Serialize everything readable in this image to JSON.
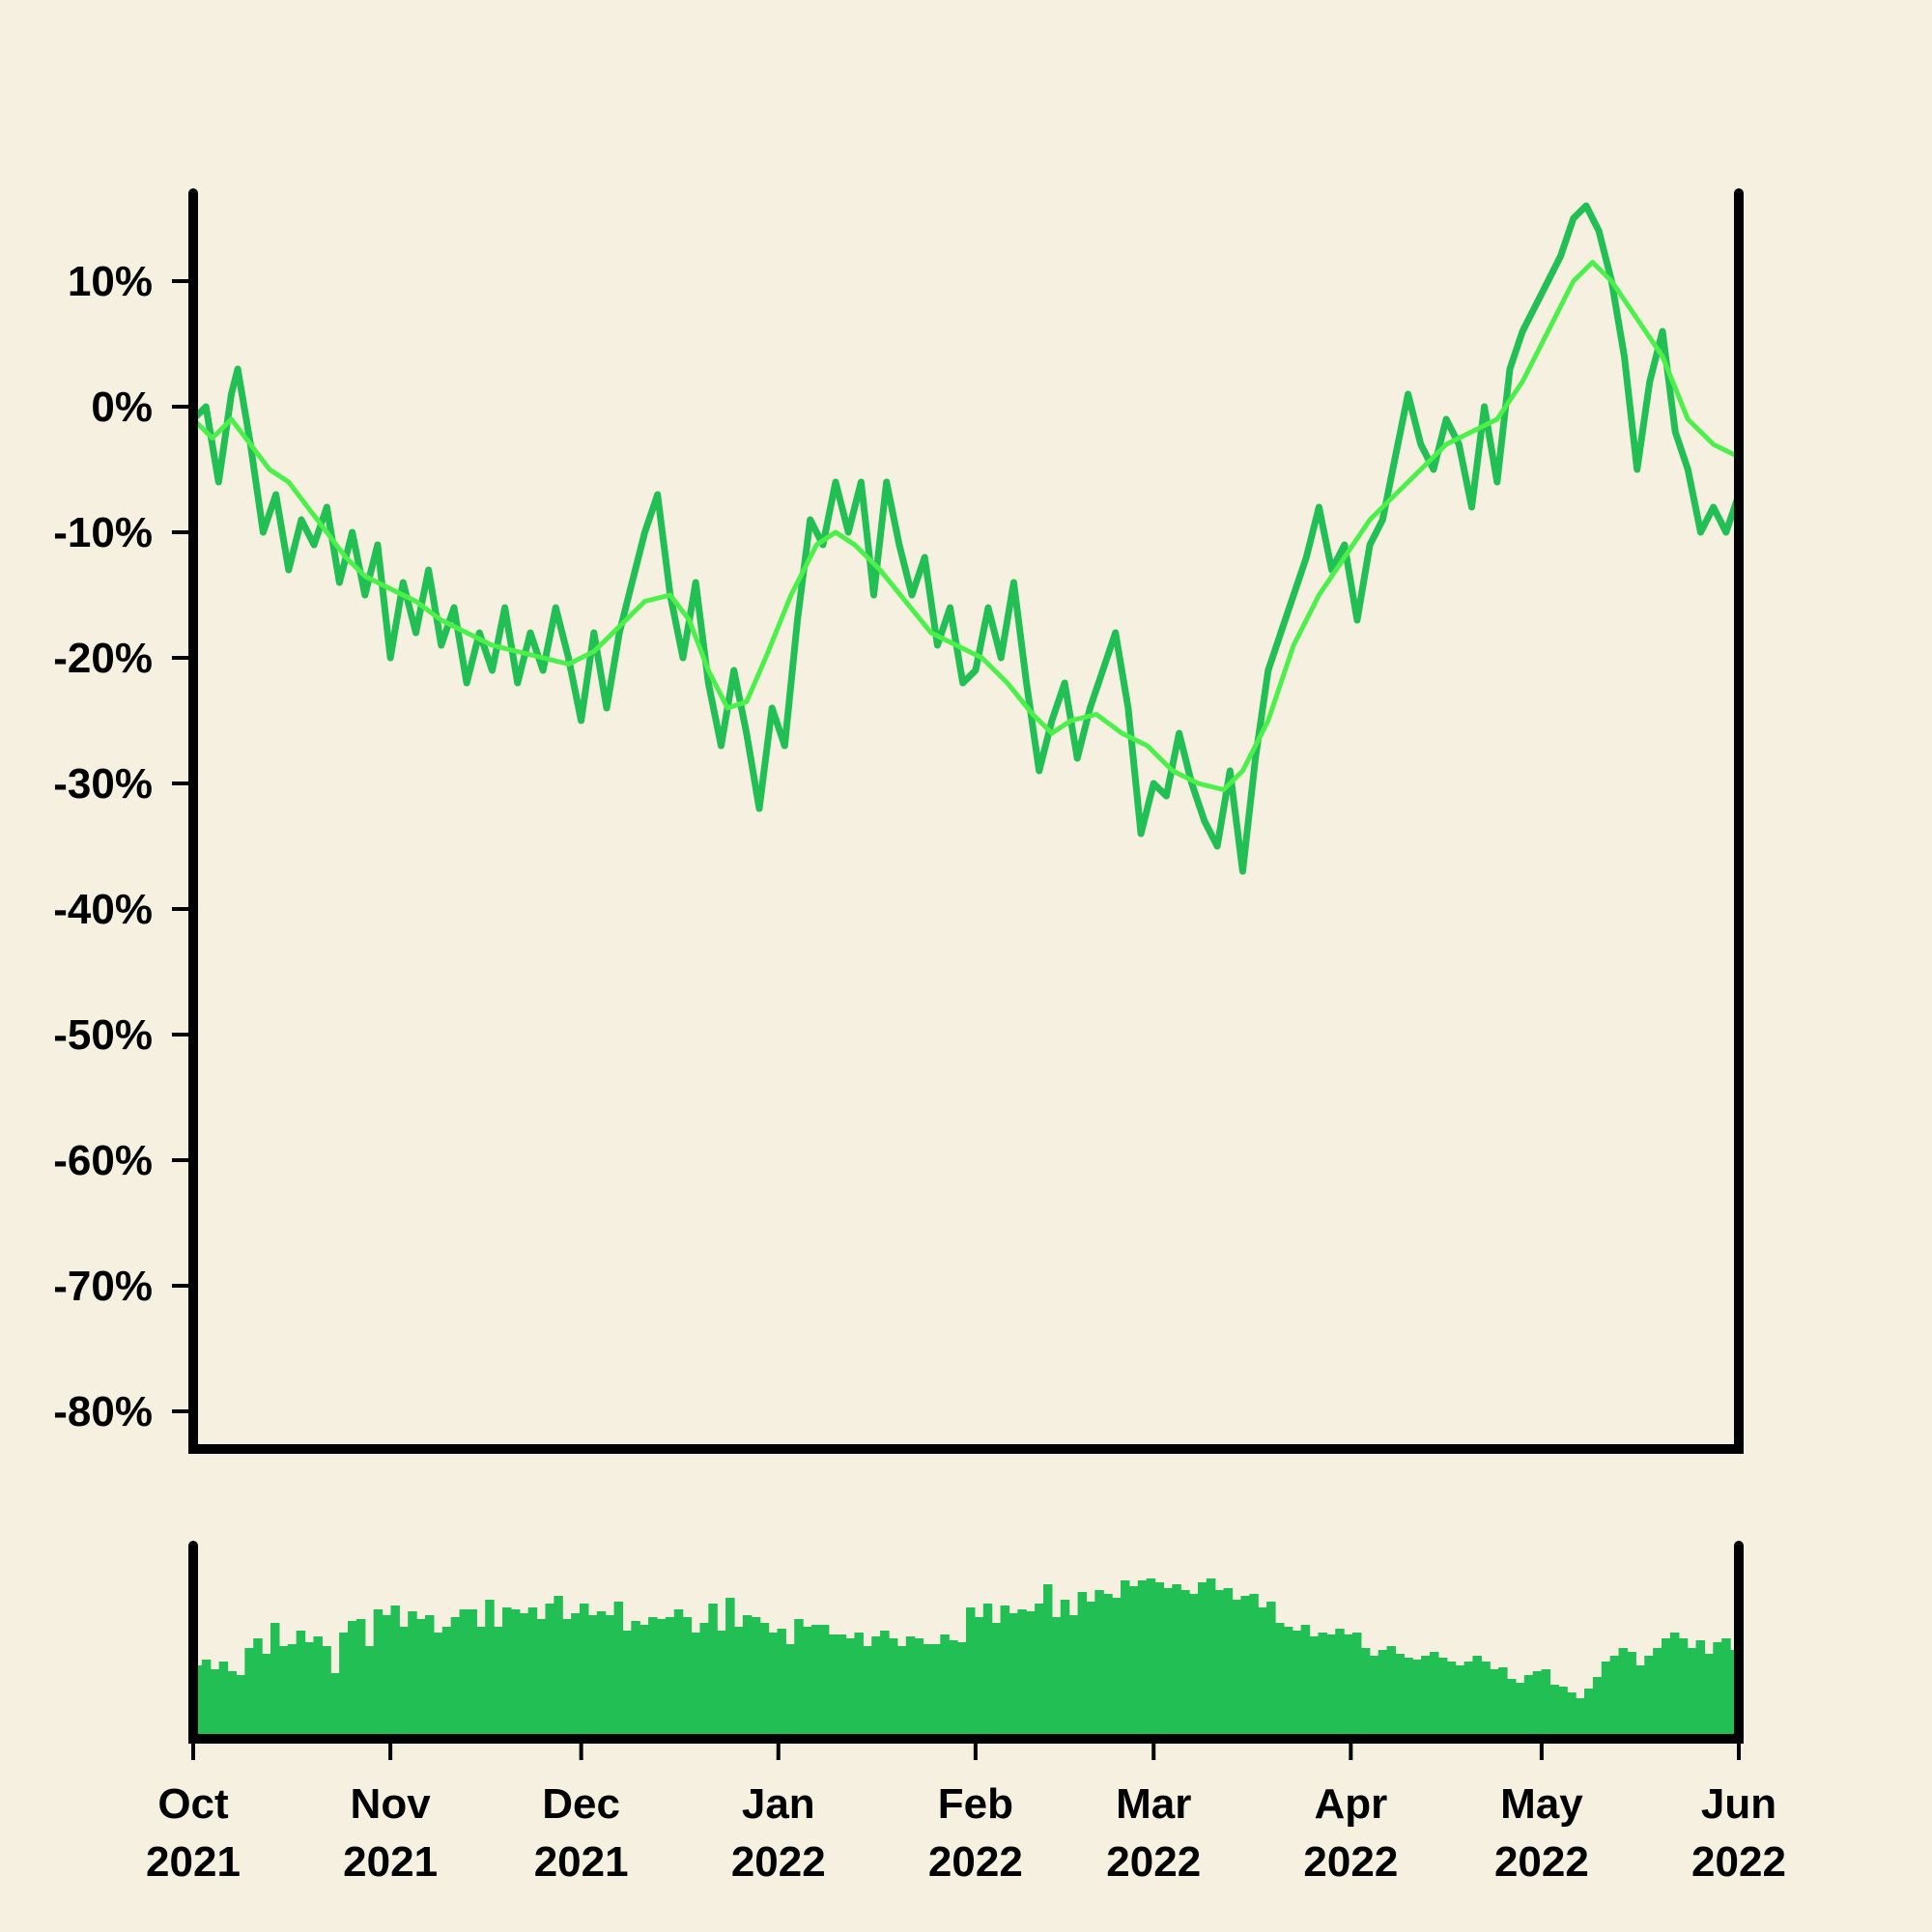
{
  "chart_data": [
    {
      "type": "line",
      "title": "",
      "xlabel": "",
      "ylabel": "",
      "x_start": "2021-10-01",
      "x_end": "2022-06-01",
      "ylim": [
        -83,
        17
      ],
      "yticks": [
        -80,
        -70,
        -60,
        -50,
        -40,
        -30,
        -20,
        -10,
        0,
        10
      ],
      "ytick_labels": [
        "-80%",
        "-70%",
        "-60%",
        "-50%",
        "-40%",
        "-30%",
        "-20%",
        "-10%",
        "0%",
        "10%"
      ],
      "grid": false,
      "series": [
        {
          "color": "#22bf55",
          "points": [
            [
              "2021-10-01",
              -1
            ],
            [
              "2021-10-03",
              0
            ],
            [
              "2021-10-05",
              -6
            ],
            [
              "2021-10-07",
              1
            ],
            [
              "2021-10-08",
              3
            ],
            [
              "2021-10-10",
              -3
            ],
            [
              "2021-10-12",
              -10
            ],
            [
              "2021-10-14",
              -7
            ],
            [
              "2021-10-16",
              -13
            ],
            [
              "2021-10-18",
              -9
            ],
            [
              "2021-10-20",
              -11
            ],
            [
              "2021-10-22",
              -8
            ],
            [
              "2021-10-24",
              -14
            ],
            [
              "2021-10-26",
              -10
            ],
            [
              "2021-10-28",
              -15
            ],
            [
              "2021-10-30",
              -11
            ],
            [
              "2021-11-01",
              -20
            ],
            [
              "2021-11-03",
              -14
            ],
            [
              "2021-11-05",
              -18
            ],
            [
              "2021-11-07",
              -13
            ],
            [
              "2021-11-09",
              -19
            ],
            [
              "2021-11-11",
              -16
            ],
            [
              "2021-11-13",
              -22
            ],
            [
              "2021-11-15",
              -18
            ],
            [
              "2021-11-17",
              -21
            ],
            [
              "2021-11-19",
              -16
            ],
            [
              "2021-11-21",
              -22
            ],
            [
              "2021-11-23",
              -18
            ],
            [
              "2021-11-25",
              -21
            ],
            [
              "2021-11-27",
              -16
            ],
            [
              "2021-11-29",
              -20
            ],
            [
              "2021-12-01",
              -25
            ],
            [
              "2021-12-03",
              -18
            ],
            [
              "2021-12-05",
              -24
            ],
            [
              "2021-12-07",
              -18
            ],
            [
              "2021-12-09",
              -14
            ],
            [
              "2021-12-11",
              -10
            ],
            [
              "2021-12-13",
              -7
            ],
            [
              "2021-12-15",
              -15
            ],
            [
              "2021-12-17",
              -20
            ],
            [
              "2021-12-19",
              -14
            ],
            [
              "2021-12-21",
              -22
            ],
            [
              "2021-12-23",
              -27
            ],
            [
              "2021-12-25",
              -21
            ],
            [
              "2021-12-27",
              -26
            ],
            [
              "2021-12-29",
              -32
            ],
            [
              "2021-12-31",
              -24
            ],
            [
              "2022-01-02",
              -27
            ],
            [
              "2022-01-04",
              -17
            ],
            [
              "2022-01-06",
              -9
            ],
            [
              "2022-01-08",
              -11
            ],
            [
              "2022-01-10",
              -6
            ],
            [
              "2022-01-12",
              -10
            ],
            [
              "2022-01-14",
              -6
            ],
            [
              "2022-01-16",
              -15
            ],
            [
              "2022-01-18",
              -6
            ],
            [
              "2022-01-20",
              -11
            ],
            [
              "2022-01-22",
              -15
            ],
            [
              "2022-01-24",
              -12
            ],
            [
              "2022-01-26",
              -19
            ],
            [
              "2022-01-28",
              -16
            ],
            [
              "2022-01-30",
              -22
            ],
            [
              "2022-02-01",
              -21
            ],
            [
              "2022-02-03",
              -16
            ],
            [
              "2022-02-05",
              -20
            ],
            [
              "2022-02-07",
              -14
            ],
            [
              "2022-02-09",
              -22
            ],
            [
              "2022-02-11",
              -29
            ],
            [
              "2022-02-13",
              -25
            ],
            [
              "2022-02-15",
              -22
            ],
            [
              "2022-02-17",
              -28
            ],
            [
              "2022-02-19",
              -24
            ],
            [
              "2022-02-21",
              -21
            ],
            [
              "2022-02-23",
              -18
            ],
            [
              "2022-02-25",
              -24
            ],
            [
              "2022-02-27",
              -34
            ],
            [
              "2022-03-01",
              -30
            ],
            [
              "2022-03-03",
              -31
            ],
            [
              "2022-03-05",
              -26
            ],
            [
              "2022-03-07",
              -30
            ],
            [
              "2022-03-09",
              -33
            ],
            [
              "2022-03-11",
              -35
            ],
            [
              "2022-03-13",
              -29
            ],
            [
              "2022-03-15",
              -37
            ],
            [
              "2022-03-17",
              -28
            ],
            [
              "2022-03-19",
              -21
            ],
            [
              "2022-03-21",
              -18
            ],
            [
              "2022-03-23",
              -15
            ],
            [
              "2022-03-25",
              -12
            ],
            [
              "2022-03-27",
              -8
            ],
            [
              "2022-03-29",
              -13
            ],
            [
              "2022-03-31",
              -11
            ],
            [
              "2022-04-02",
              -17
            ],
            [
              "2022-04-04",
              -11
            ],
            [
              "2022-04-06",
              -9
            ],
            [
              "2022-04-08",
              -4
            ],
            [
              "2022-04-10",
              1
            ],
            [
              "2022-04-12",
              -3
            ],
            [
              "2022-04-14",
              -5
            ],
            [
              "2022-04-16",
              -1
            ],
            [
              "2022-04-18",
              -3
            ],
            [
              "2022-04-20",
              -8
            ],
            [
              "2022-04-22",
              0
            ],
            [
              "2022-04-24",
              -6
            ],
            [
              "2022-04-26",
              3
            ],
            [
              "2022-04-28",
              6
            ],
            [
              "2022-04-30",
              8
            ],
            [
              "2022-05-02",
              10
            ],
            [
              "2022-05-04",
              12
            ],
            [
              "2022-05-06",
              15
            ],
            [
              "2022-05-08",
              16
            ],
            [
              "2022-05-10",
              14
            ],
            [
              "2022-05-12",
              10
            ],
            [
              "2022-05-14",
              4
            ],
            [
              "2022-05-16",
              -5
            ],
            [
              "2022-05-18",
              2
            ],
            [
              "2022-05-20",
              6
            ],
            [
              "2022-05-22",
              -2
            ],
            [
              "2022-05-24",
              -5
            ],
            [
              "2022-05-26",
              -10
            ],
            [
              "2022-05-28",
              -8
            ],
            [
              "2022-05-30",
              -10
            ],
            [
              "2022-06-01",
              -7
            ]
          ]
        },
        {
          "color": "#4cf04a",
          "points": [
            [
              "2021-10-01",
              -1
            ],
            [
              "2021-10-04",
              -2.5
            ],
            [
              "2021-10-07",
              -1
            ],
            [
              "2021-10-10",
              -3
            ],
            [
              "2021-10-13",
              -5
            ],
            [
              "2021-10-16",
              -6
            ],
            [
              "2021-10-19",
              -8
            ],
            [
              "2021-10-22",
              -10
            ],
            [
              "2021-10-25",
              -12
            ],
            [
              "2021-10-28",
              -13.5
            ],
            [
              "2021-11-01",
              -14.5
            ],
            [
              "2021-11-05",
              -15.5
            ],
            [
              "2021-11-09",
              -17
            ],
            [
              "2021-11-13",
              -18
            ],
            [
              "2021-11-17",
              -19
            ],
            [
              "2021-11-21",
              -19.5
            ],
            [
              "2021-11-25",
              -20
            ],
            [
              "2021-11-29",
              -20.5
            ],
            [
              "2021-12-03",
              -19.5
            ],
            [
              "2021-12-07",
              -17.5
            ],
            [
              "2021-12-11",
              -15.5
            ],
            [
              "2021-12-15",
              -15
            ],
            [
              "2021-12-18",
              -17
            ],
            [
              "2021-12-21",
              -21
            ],
            [
              "2021-12-24",
              -24
            ],
            [
              "2021-12-27",
              -23.5
            ],
            [
              "2021-12-30",
              -20
            ],
            [
              "2022-01-03",
              -15
            ],
            [
              "2022-01-07",
              -11
            ],
            [
              "2022-01-10",
              -10
            ],
            [
              "2022-01-13",
              -11
            ],
            [
              "2022-01-17",
              -13
            ],
            [
              "2022-01-21",
              -15.5
            ],
            [
              "2022-01-25",
              -18
            ],
            [
              "2022-01-29",
              -19
            ],
            [
              "2022-02-02",
              -20
            ],
            [
              "2022-02-06",
              -22
            ],
            [
              "2022-02-10",
              -24.5
            ],
            [
              "2022-02-13",
              -26
            ],
            [
              "2022-02-16",
              -25
            ],
            [
              "2022-02-20",
              -24.5
            ],
            [
              "2022-02-24",
              -26
            ],
            [
              "2022-02-28",
              -27
            ],
            [
              "2022-03-04",
              -29
            ],
            [
              "2022-03-08",
              -30
            ],
            [
              "2022-03-12",
              -30.5
            ],
            [
              "2022-03-15",
              -29
            ],
            [
              "2022-03-19",
              -25
            ],
            [
              "2022-03-23",
              -19
            ],
            [
              "2022-03-27",
              -15
            ],
            [
              "2022-03-31",
              -12
            ],
            [
              "2022-04-04",
              -9
            ],
            [
              "2022-04-08",
              -7
            ],
            [
              "2022-04-12",
              -5
            ],
            [
              "2022-04-16",
              -3
            ],
            [
              "2022-04-20",
              -2
            ],
            [
              "2022-04-24",
              -1
            ],
            [
              "2022-04-28",
              2
            ],
            [
              "2022-05-02",
              6
            ],
            [
              "2022-05-06",
              10
            ],
            [
              "2022-05-09",
              11.5
            ],
            [
              "2022-05-12",
              10
            ],
            [
              "2022-05-16",
              7
            ],
            [
              "2022-05-20",
              4
            ],
            [
              "2022-05-24",
              -1
            ],
            [
              "2022-05-28",
              -3
            ],
            [
              "2022-06-01",
              -4
            ]
          ]
        }
      ]
    },
    {
      "type": "bar",
      "title": "",
      "xlabel": "",
      "ylabel": "",
      "x_start": "2021-10-01",
      "x_end": "2022-06-01",
      "ylim": [
        0,
        100
      ],
      "color": "#22bf55",
      "values": [
        38,
        41,
        36,
        40,
        35,
        33,
        47,
        52,
        44,
        60,
        48,
        49,
        56,
        50,
        53,
        48,
        34,
        55,
        61,
        62,
        48,
        67,
        64,
        69,
        58,
        66,
        62,
        64,
        55,
        58,
        63,
        67,
        67,
        58,
        72,
        58,
        68,
        67,
        65,
        68,
        62,
        70,
        74,
        62,
        65,
        70,
        64,
        66,
        64,
        71,
        56,
        61,
        59,
        63,
        62,
        63,
        67,
        63,
        55,
        60,
        70,
        56,
        73,
        58,
        64,
        63,
        60,
        55,
        57,
        49,
        62,
        58,
        59,
        59,
        54,
        54,
        52,
        55,
        48,
        53,
        56,
        52,
        48,
        53,
        52,
        49,
        49,
        54,
        51,
        50,
        68,
        63,
        70,
        60,
        69,
        65,
        67,
        66,
        70,
        80,
        63,
        72,
        64,
        76,
        71,
        77,
        75,
        73,
        82,
        79,
        82,
        83,
        81,
        78,
        80,
        77,
        75,
        81,
        83,
        77,
        78,
        72,
        74,
        75,
        68,
        71,
        60,
        58,
        56,
        59,
        53,
        55,
        54,
        57,
        54,
        55,
        47,
        43,
        46,
        48,
        44,
        42,
        41,
        43,
        45,
        42,
        40,
        38,
        40,
        43,
        40,
        36,
        37,
        31,
        29,
        33,
        35,
        36,
        28,
        27,
        24,
        21,
        26,
        32,
        40,
        43,
        47,
        45,
        38,
        43,
        47,
        52,
        55,
        52,
        47,
        51,
        44,
        50,
        52,
        46
      ]
    }
  ],
  "x_axis": {
    "ticks": [
      {
        "date": "2021-10-01",
        "month": "Oct",
        "year": "2021"
      },
      {
        "date": "2021-11-01",
        "month": "Nov",
        "year": "2021"
      },
      {
        "date": "2021-12-01",
        "month": "Dec",
        "year": "2021"
      },
      {
        "date": "2022-01-01",
        "month": "Jan",
        "year": "2022"
      },
      {
        "date": "2022-02-01",
        "month": "Feb",
        "year": "2022"
      },
      {
        "date": "2022-03-01",
        "month": "Mar",
        "year": "2022"
      },
      {
        "date": "2022-04-01",
        "month": "Apr",
        "year": "2022"
      },
      {
        "date": "2022-05-01",
        "month": "May",
        "year": "2022"
      },
      {
        "date": "2022-06-01",
        "month": "Jun",
        "year": "2022"
      }
    ]
  }
}
